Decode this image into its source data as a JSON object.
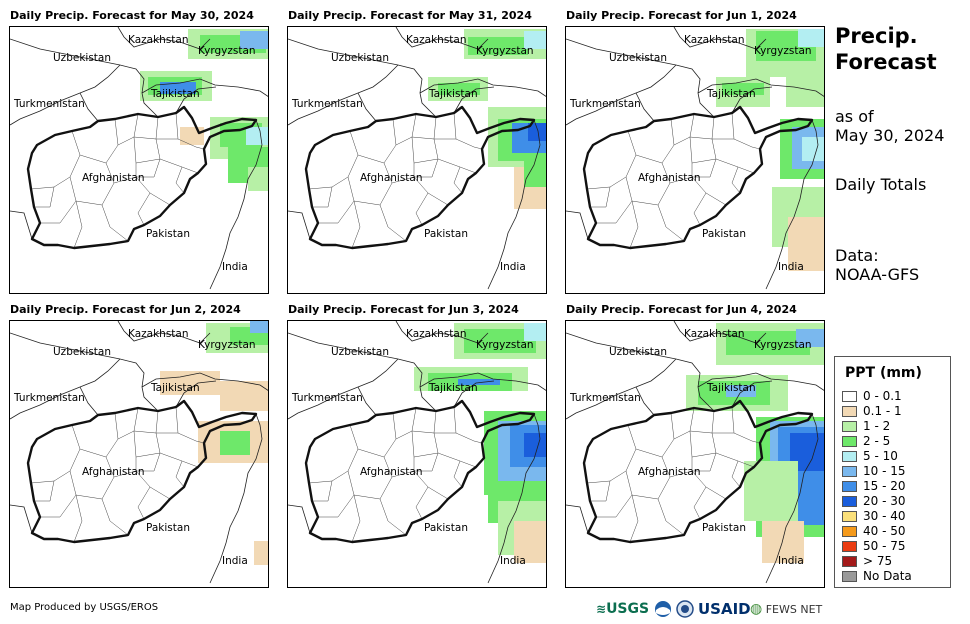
{
  "panels": [
    {
      "title": "Daily Precip. Forecast for May 30, 2024",
      "day": 0
    },
    {
      "title": "Daily Precip. Forecast for May 31, 2024",
      "day": 1
    },
    {
      "title": "Daily Precip. Forecast for Jun 1, 2024",
      "day": 2
    },
    {
      "title": "Daily Precip. Forecast for Jun 2, 2024",
      "day": 3
    },
    {
      "title": "Daily Precip. Forecast for Jun 3, 2024",
      "day": 4
    },
    {
      "title": "Daily Precip. Forecast for Jun 4, 2024",
      "day": 5
    }
  ],
  "map_labels": {
    "kazakhstan": "Kazakhstan",
    "kyrgyzstan": "Kyrgyzstan",
    "uzbekistan": "Uzbekistan",
    "tajikistan": "Tajikistan",
    "turkmenistan": "Turkmenistan",
    "afghanistan": "Afghanistan",
    "pakistan": "Pakistan",
    "india": "India"
  },
  "side": {
    "title_line1": "Precip.",
    "title_line2": "Forecast",
    "asof_line1": "as of",
    "asof_line2": "May 30, 2024",
    "totals": "Daily Totals",
    "data_line1": "Data:",
    "data_line2": "NOAA-GFS"
  },
  "legend": {
    "title": "PPT (mm)",
    "items": [
      {
        "label": "0 - 0.1",
        "color": "#ffffff"
      },
      {
        "label": "0.1 - 1",
        "color": "#f2d9b5"
      },
      {
        "label": "1 - 2",
        "color": "#b7f0a6"
      },
      {
        "label": "2 - 5",
        "color": "#6ee86a"
      },
      {
        "label": "5 - 10",
        "color": "#b3eef2"
      },
      {
        "label": "10 - 15",
        "color": "#7ab8ee"
      },
      {
        "label": "15 - 20",
        "color": "#3f8ee8"
      },
      {
        "label": "20 - 30",
        "color": "#1a5edc"
      },
      {
        "label": "30 - 40",
        "color": "#fbe07a"
      },
      {
        "label": "40 - 50",
        "color": "#f59a1b"
      },
      {
        "label": "50 - 75",
        "color": "#ea3c12"
      },
      {
        "label": "> 75",
        "color": "#a31a1a"
      },
      {
        "label": "No Data",
        "color": "#9a9a9a"
      }
    ]
  },
  "footer": {
    "credit": "Map Produced by USGS/EROS"
  },
  "logos": {
    "usgs": "USGS",
    "usaid": "USAID",
    "fews": "FEWS NET"
  }
}
